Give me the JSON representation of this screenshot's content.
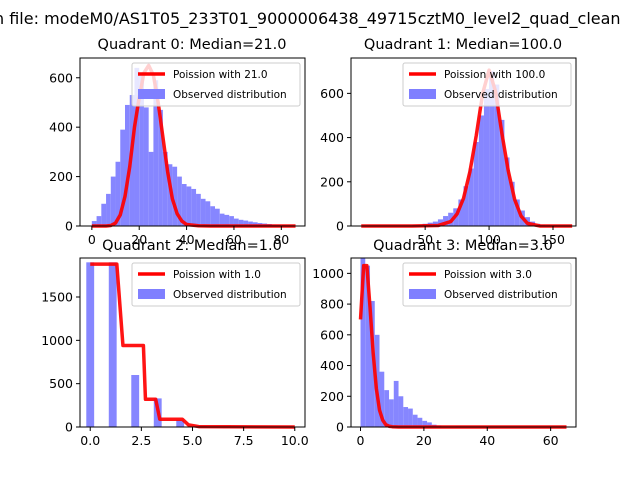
{
  "suptitle": "n file: modeM0/AS1T05_233T01_9000006438_49715cztM0_level2_quad_clean",
  "chart_data": [
    {
      "type": "bar+line",
      "title": "Quadrant 0: Median=21.0",
      "xlim": [
        -5,
        90
      ],
      "ylim": [
        0,
        680
      ],
      "xticks": [
        0,
        20,
        40,
        60,
        80
      ],
      "yticks": [
        0,
        200,
        400,
        600
      ],
      "bars": {
        "name": "Observed distribution",
        "color": "#7f7fff",
        "x": [
          0,
          2,
          4,
          6,
          8,
          10,
          12,
          14,
          16,
          18,
          20,
          22,
          24,
          26,
          28,
          30,
          32,
          34,
          36,
          38,
          40,
          42,
          44,
          46,
          48,
          50,
          52,
          54,
          56,
          58,
          60,
          62,
          64,
          66,
          68,
          70,
          72,
          74,
          76,
          78,
          80,
          82,
          84,
          86
        ],
        "values": [
          20,
          40,
          90,
          130,
          200,
          260,
          390,
          490,
          530,
          640,
          620,
          480,
          300,
          590,
          470,
          300,
          250,
          240,
          200,
          170,
          160,
          150,
          130,
          110,
          100,
          80,
          70,
          50,
          45,
          40,
          30,
          25,
          22,
          18,
          15,
          12,
          10,
          8,
          6,
          5,
          4,
          3,
          2,
          2
        ]
      },
      "line": {
        "name": "Poission with 21.0",
        "color": "#ff0000",
        "x": [
          0,
          6,
          8,
          10,
          12,
          14,
          16,
          18,
          20,
          22,
          24,
          26,
          28,
          30,
          32,
          34,
          36,
          38,
          40,
          45,
          50,
          60,
          70,
          80,
          86
        ],
        "y": [
          0,
          0,
          2,
          12,
          45,
          120,
          240,
          400,
          520,
          620,
          650,
          610,
          500,
          360,
          220,
          110,
          50,
          20,
          6,
          1,
          0,
          0,
          0,
          0,
          0
        ]
      }
    },
    {
      "type": "bar+line",
      "title": "Quadrant 1: Median=100.0",
      "xlim": [
        -8,
        168
      ],
      "ylim": [
        0,
        760
      ],
      "xticks": [
        50,
        100,
        150
      ],
      "yticks": [
        0,
        200,
        400,
        600
      ],
      "bars": {
        "name": "Observed distribution",
        "color": "#7f7fff",
        "x": [
          0,
          10,
          20,
          30,
          40,
          44,
          48,
          52,
          56,
          60,
          64,
          68,
          72,
          76,
          80,
          84,
          88,
          92,
          96,
          100,
          104,
          108,
          112,
          116,
          120,
          124,
          128,
          132,
          136,
          140,
          144,
          148,
          152,
          156,
          160
        ],
        "values": [
          0,
          0,
          0,
          0,
          5,
          5,
          10,
          15,
          20,
          30,
          45,
          60,
          80,
          120,
          180,
          260,
          380,
          500,
          620,
          700,
          640,
          480,
          310,
          200,
          120,
          70,
          40,
          20,
          10,
          5,
          3,
          2,
          0,
          0,
          0
        ]
      },
      "line": {
        "name": "Poission with 100.0",
        "color": "#ff0000",
        "x": [
          0,
          40,
          60,
          70,
          75,
          80,
          85,
          90,
          95,
          100,
          105,
          110,
          115,
          120,
          125,
          130,
          140,
          160,
          165
        ],
        "y": [
          0,
          0,
          2,
          20,
          55,
          125,
          245,
          410,
          600,
          705,
          610,
          420,
          250,
          120,
          45,
          12,
          0,
          0,
          0
        ]
      }
    },
    {
      "type": "bar+line",
      "title": "Quadrant 2: Median=1.0",
      "xlim": [
        -0.5,
        10.5
      ],
      "ylim": [
        0,
        1950
      ],
      "xticks": [
        0.0,
        2.5,
        5.0,
        7.5,
        10.0
      ],
      "yticks": [
        0,
        500,
        1000,
        1500
      ],
      "bars": {
        "name": "Observed distribution",
        "color": "#7f7fff",
        "x": [
          0.0,
          1.1,
          2.2,
          3.3,
          4.4,
          5.5
        ],
        "values": [
          1900,
          1900,
          600,
          330,
          80,
          10
        ]
      },
      "line": {
        "name": "Poission with 1.0",
        "color": "#ff0000",
        "x": [
          0,
          1.3,
          1.6,
          2.6,
          2.7,
          3.2,
          3.4,
          3.9,
          4.5,
          4.8,
          5.3,
          10
        ],
        "y": [
          1880,
          1880,
          940,
          940,
          320,
          320,
          90,
          90,
          90,
          25,
          5,
          0
        ]
      }
    },
    {
      "type": "bar+line",
      "title": "Quadrant 3: Median=3.0",
      "xlim": [
        -3,
        68
      ],
      "ylim": [
        0,
        1100
      ],
      "xticks": [
        0,
        20,
        40,
        60
      ],
      "yticks": [
        0,
        200,
        400,
        600,
        800,
        1000
      ],
      "bars": {
        "name": "Observed distribution",
        "color": "#7f7fff",
        "x": [
          0,
          1.5,
          3,
          4.5,
          6,
          7.5,
          9,
          10.5,
          12,
          13.5,
          15,
          16.5,
          18,
          19.5,
          21,
          22.5,
          24,
          30,
          40,
          50,
          60
        ],
        "values": [
          1100,
          1050,
          820,
          600,
          360,
          240,
          180,
          300,
          200,
          130,
          120,
          80,
          60,
          40,
          30,
          15,
          10,
          5,
          3,
          2,
          2
        ]
      },
      "line": {
        "name": "Poission with 3.0",
        "color": "#ff0000",
        "x": [
          0,
          1,
          2,
          3,
          4,
          5,
          6,
          7,
          8,
          9,
          10,
          12,
          14,
          20,
          40,
          65
        ],
        "y": [
          700,
          1050,
          1050,
          780,
          480,
          250,
          110,
          45,
          15,
          5,
          2,
          0,
          0,
          0,
          0,
          0
        ]
      }
    }
  ]
}
